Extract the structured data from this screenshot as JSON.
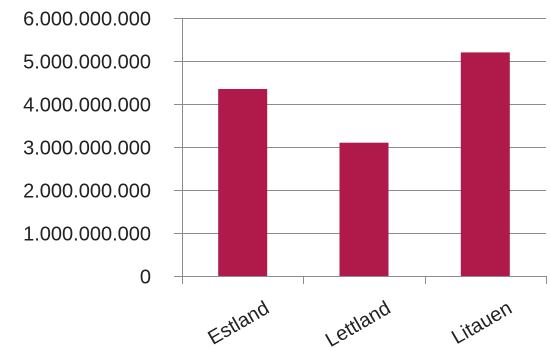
{
  "chart_data": {
    "type": "bar",
    "categories": [
      "Estland",
      "Lettland",
      "Litauen"
    ],
    "values": [
      4350000000,
      3100000000,
      5200000000
    ],
    "ylim": [
      0,
      6000000000
    ],
    "yticks": [
      {
        "value": 0,
        "label": "0"
      },
      {
        "value": 1000000000,
        "label": "1.000.000.000"
      },
      {
        "value": 2000000000,
        "label": "2.000.000.000"
      },
      {
        "value": 3000000000,
        "label": "3.000.000.000"
      },
      {
        "value": 4000000000,
        "label": "4.000.000.000"
      },
      {
        "value": 5000000000,
        "label": "5.000.000.000"
      },
      {
        "value": 6000000000,
        "label": "6.000.000.000"
      }
    ],
    "grid": true,
    "legend": "none",
    "title": "",
    "xlabel": "",
    "ylabel": "",
    "colors": {
      "bar": "#AF1A4B",
      "grid": "#8c8c8c",
      "axis": "#8c8c8c",
      "text": "#222222"
    }
  }
}
